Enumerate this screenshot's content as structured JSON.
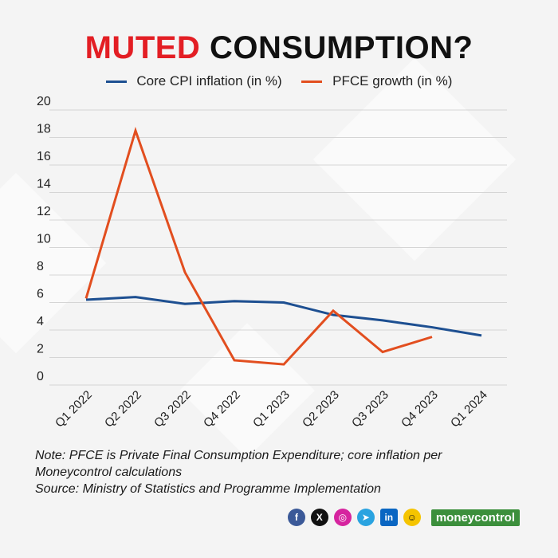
{
  "header": {
    "title_accent": "MUTED",
    "title_rest": "CONSUMPTION?"
  },
  "colors": {
    "core": "#1d4f91",
    "pfce": "#e24e1f",
    "accent": "#e31e24",
    "grid": "#d5d5d5"
  },
  "chart_data": {
    "type": "line",
    "title": "MUTED CONSUMPTION?",
    "categories": [
      "Q1 2022",
      "Q2 2022",
      "Q3 2022",
      "Q4 2022",
      "Q1 2023",
      "Q2 2023",
      "Q3 2023",
      "Q4 2023",
      "Q1 2024"
    ],
    "series": [
      {
        "name": "Core CPI inflation (in %)",
        "values": [
          6.2,
          6.4,
          5.9,
          6.1,
          6.0,
          5.1,
          4.7,
          4.2,
          3.6
        ]
      },
      {
        "name": "PFCE growth (in %)",
        "values": [
          6.3,
          18.5,
          8.2,
          1.8,
          1.5,
          5.4,
          2.4,
          3.5,
          null
        ]
      }
    ],
    "yticks": [
      "0",
      "2",
      "4",
      "6",
      "8",
      "10",
      "12",
      "14",
      "16",
      "18",
      "20"
    ],
    "ylim": [
      0,
      20
    ],
    "xlabel": "",
    "ylabel": "",
    "grid": true,
    "legend_position": "top"
  },
  "notes": {
    "line1": "Note: PFCE is Private Final Consumption Expenditure; core inflation per",
    "line2": "Moneycontrol calculations",
    "source": "Source: Ministry of Statistics and Programme Implementation"
  },
  "footer": {
    "social": [
      {
        "name": "facebook",
        "glyph": "f",
        "color": "#3b5998"
      },
      {
        "name": "x",
        "glyph": "X",
        "color": "#111111"
      },
      {
        "name": "instagram",
        "glyph": "◎",
        "color": "#d6249f"
      },
      {
        "name": "telegram",
        "glyph": "➤",
        "color": "#2aa3e0"
      },
      {
        "name": "linkedin",
        "glyph": "in",
        "color": "#0a66c2"
      },
      {
        "name": "snapchat",
        "glyph": "☺",
        "color": "#f5c400"
      }
    ],
    "brand": "moneycontrol"
  }
}
